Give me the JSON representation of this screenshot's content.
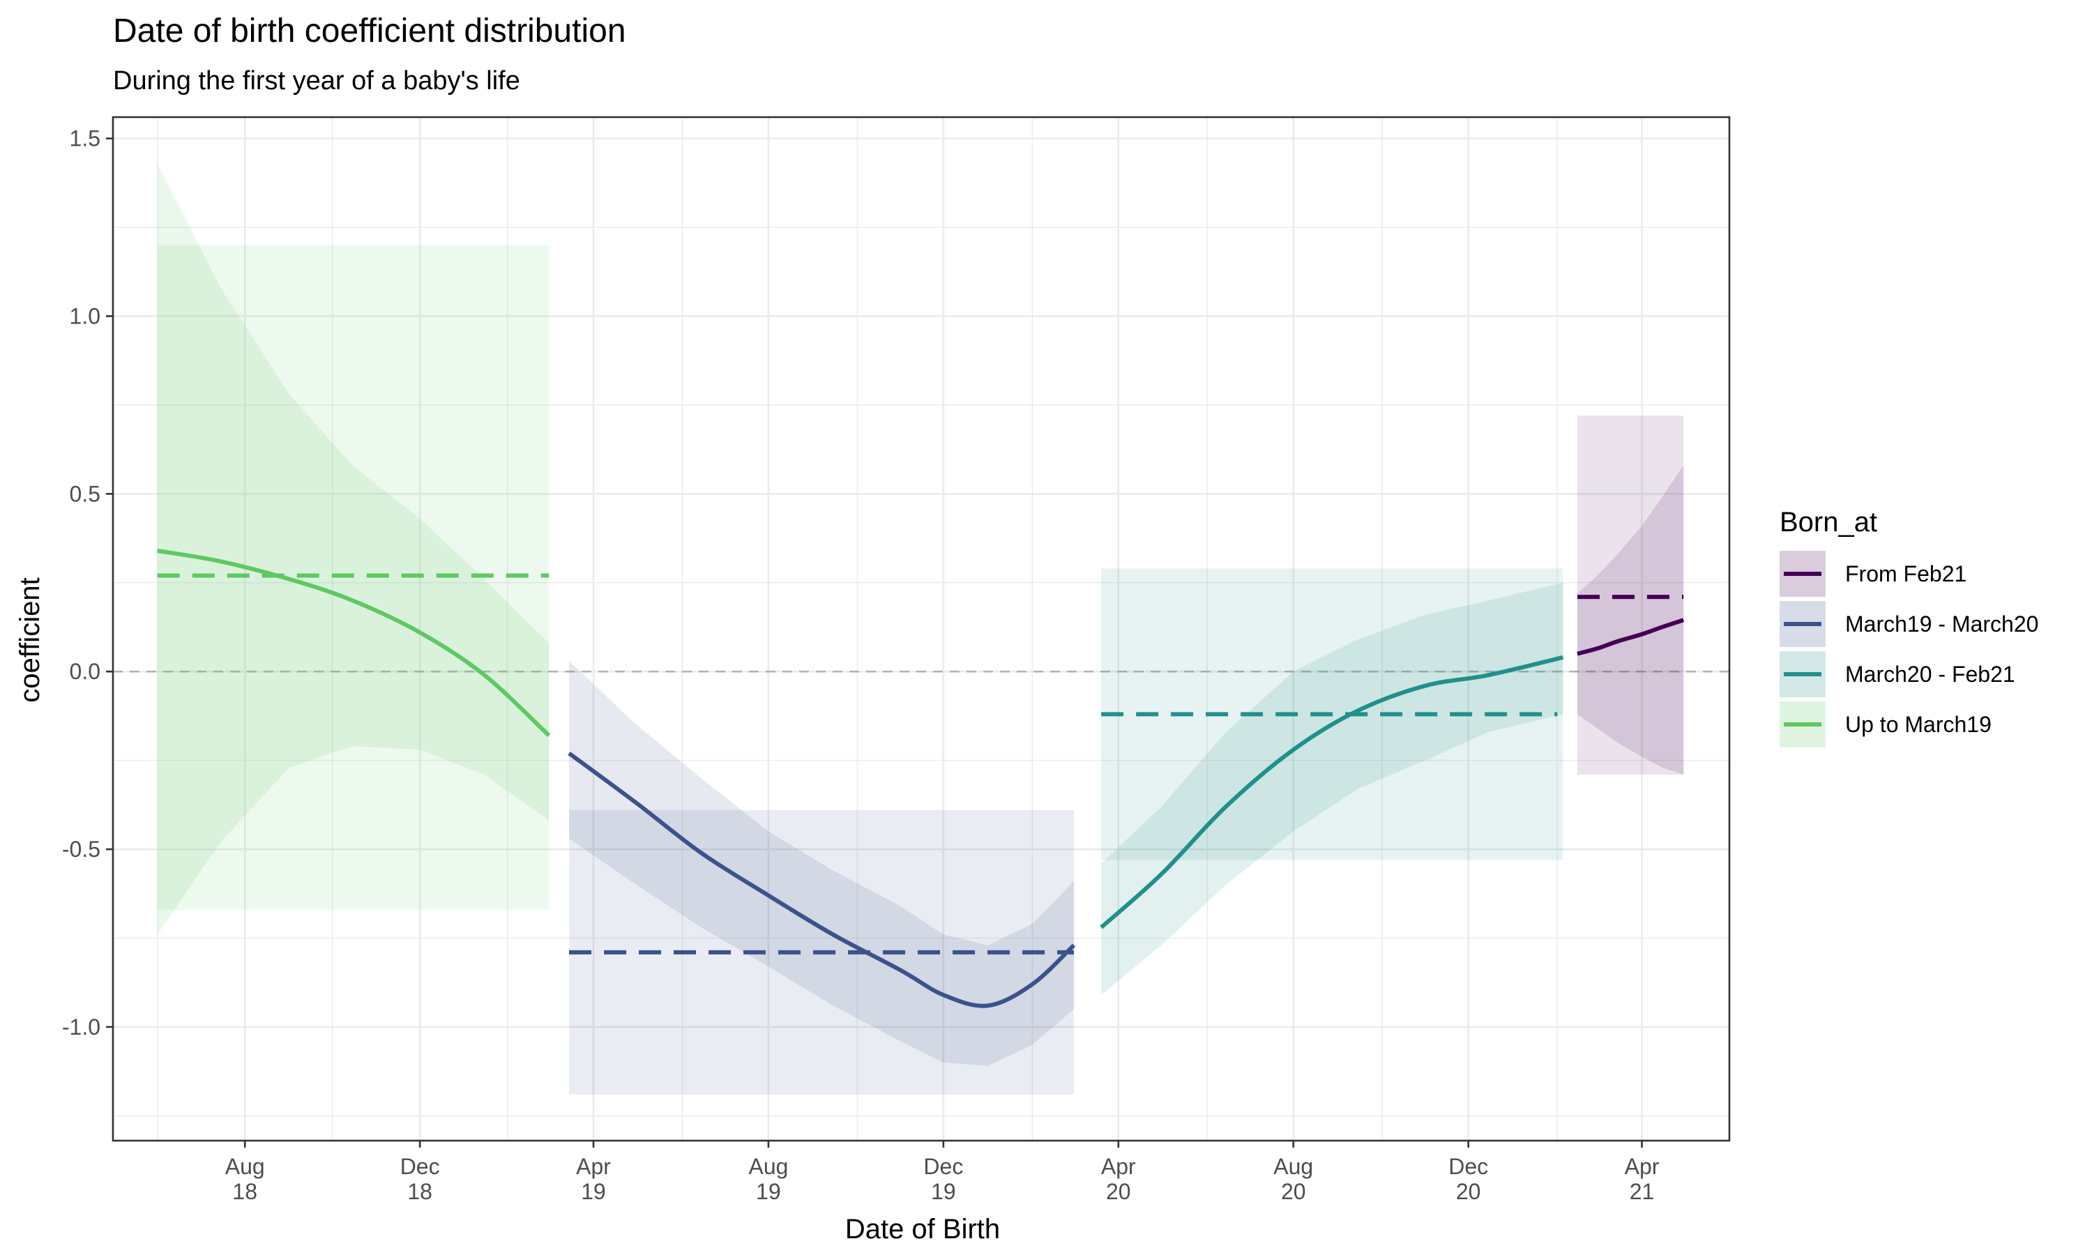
{
  "chart_data": {
    "type": "line",
    "title": "Date of birth coefficient distribution",
    "subtitle": "During the first year of a baby's life",
    "xlabel": "Date of Birth",
    "ylabel": "coefficient",
    "x_type": "date",
    "xlim": [
      "2018-05-01",
      "2021-06-01"
    ],
    "ylim": [
      -1.32,
      1.56
    ],
    "y_ticks": [
      -1.0,
      -0.5,
      0.0,
      0.5,
      1.0,
      1.5
    ],
    "y_tick_labels": [
      "-1.0",
      "-0.5",
      "0.0",
      "0.5",
      "1.0",
      "1.5"
    ],
    "x_ticks": [
      {
        "date": "2018-08-01",
        "label": [
          "Aug",
          "18"
        ]
      },
      {
        "date": "2018-12-01",
        "label": [
          "Dec",
          "18"
        ]
      },
      {
        "date": "2019-04-01",
        "label": [
          "Apr",
          "19"
        ]
      },
      {
        "date": "2019-08-01",
        "label": [
          "Aug",
          "19"
        ]
      },
      {
        "date": "2019-12-01",
        "label": [
          "Dec",
          "19"
        ]
      },
      {
        "date": "2020-04-01",
        "label": [
          "Apr",
          "20"
        ]
      },
      {
        "date": "2020-08-01",
        "label": [
          "Aug",
          "20"
        ]
      },
      {
        "date": "2020-12-01",
        "label": [
          "Dec",
          "20"
        ]
      },
      {
        "date": "2021-04-01",
        "label": [
          "Apr",
          "21"
        ]
      }
    ],
    "grid": true,
    "reference_line": {
      "y": 0.0,
      "style": "dashed"
    },
    "legend": {
      "title": "Born_at",
      "position": "right"
    },
    "series": [
      {
        "name": "From Feb21",
        "color": "#440154",
        "mean": 0.21,
        "mean_range": [
          "2021-02-15",
          "2021-04-30"
        ],
        "interval": {
          "from": "2021-02-15",
          "to": "2021-04-30",
          "low": -0.29,
          "high": 0.72
        },
        "trend": [
          {
            "x": "2021-02-15",
            "y": 0.05
          },
          {
            "x": "2021-03-01",
            "y": 0.065
          },
          {
            "x": "2021-03-15",
            "y": 0.085
          },
          {
            "x": "2021-04-01",
            "y": 0.105
          },
          {
            "x": "2021-04-15",
            "y": 0.125
          },
          {
            "x": "2021-04-30",
            "y": 0.145
          }
        ],
        "trend_band": [
          {
            "x": "2021-02-15",
            "low": -0.12,
            "high": 0.22
          },
          {
            "x": "2021-03-01",
            "low": -0.16,
            "high": 0.27
          },
          {
            "x": "2021-03-15",
            "low": -0.2,
            "high": 0.33
          },
          {
            "x": "2021-04-01",
            "low": -0.24,
            "high": 0.41
          },
          {
            "x": "2021-04-15",
            "low": -0.27,
            "high": 0.49
          },
          {
            "x": "2021-04-30",
            "low": -0.29,
            "high": 0.58
          }
        ]
      },
      {
        "name": "March19 - March20",
        "color": "#3b528b",
        "mean": -0.79,
        "mean_range": [
          "2019-03-15",
          "2020-03-01"
        ],
        "interval": {
          "from": "2019-03-15",
          "to": "2020-03-01",
          "low": -1.19,
          "high": -0.39
        },
        "trend": [
          {
            "x": "2019-03-15",
            "y": -0.23
          },
          {
            "x": "2019-05-01",
            "y": -0.37
          },
          {
            "x": "2019-06-15",
            "y": -0.51
          },
          {
            "x": "2019-08-01",
            "y": -0.63
          },
          {
            "x": "2019-09-15",
            "y": -0.74
          },
          {
            "x": "2019-11-01",
            "y": -0.84
          },
          {
            "x": "2019-12-01",
            "y": -0.91
          },
          {
            "x": "2020-01-01",
            "y": -0.94
          },
          {
            "x": "2020-02-01",
            "y": -0.88
          },
          {
            "x": "2020-03-01",
            "y": -0.77
          }
        ],
        "trend_band": [
          {
            "x": "2019-03-15",
            "low": -0.47,
            "high": 0.03
          },
          {
            "x": "2019-05-01",
            "low": -0.6,
            "high": -0.15
          },
          {
            "x": "2019-06-15",
            "low": -0.72,
            "high": -0.3
          },
          {
            "x": "2019-08-01",
            "low": -0.83,
            "high": -0.45
          },
          {
            "x": "2019-09-15",
            "low": -0.94,
            "high": -0.56
          },
          {
            "x": "2019-11-01",
            "low": -1.04,
            "high": -0.66
          },
          {
            "x": "2019-12-01",
            "low": -1.1,
            "high": -0.74
          },
          {
            "x": "2020-01-01",
            "low": -1.11,
            "high": -0.77
          },
          {
            "x": "2020-02-01",
            "low": -1.05,
            "high": -0.71
          },
          {
            "x": "2020-03-01",
            "low": -0.95,
            "high": -0.59
          }
        ]
      },
      {
        "name": "March20 - Feb21",
        "color": "#21908c",
        "mean": -0.12,
        "mean_range": [
          "2020-03-20",
          "2021-02-01"
        ],
        "interval": {
          "from": "2020-03-20",
          "to": "2021-02-05",
          "low": -0.53,
          "high": 0.29
        },
        "trend": [
          {
            "x": "2020-03-20",
            "y": -0.72
          },
          {
            "x": "2020-05-01",
            "y": -0.57
          },
          {
            "x": "2020-06-15",
            "y": -0.38
          },
          {
            "x": "2020-08-01",
            "y": -0.22
          },
          {
            "x": "2020-09-15",
            "y": -0.11
          },
          {
            "x": "2020-11-01",
            "y": -0.04
          },
          {
            "x": "2020-12-15",
            "y": -0.01
          },
          {
            "x": "2021-02-05",
            "y": 0.04
          }
        ],
        "trend_band": [
          {
            "x": "2020-03-20",
            "low": -0.91,
            "high": -0.54
          },
          {
            "x": "2020-05-01",
            "low": -0.77,
            "high": -0.38
          },
          {
            "x": "2020-06-15",
            "low": -0.6,
            "high": -0.17
          },
          {
            "x": "2020-08-01",
            "low": -0.45,
            "high": 0.0
          },
          {
            "x": "2020-09-15",
            "low": -0.33,
            "high": 0.09
          },
          {
            "x": "2020-11-01",
            "low": -0.25,
            "high": 0.16
          },
          {
            "x": "2020-12-15",
            "low": -0.17,
            "high": 0.2
          },
          {
            "x": "2021-02-05",
            "low": -0.12,
            "high": 0.25
          }
        ]
      },
      {
        "name": "Up to March19",
        "color": "#5ec962",
        "mean": 0.27,
        "mean_range": [
          "2018-06-01",
          "2019-03-01"
        ],
        "interval": {
          "from": "2018-06-01",
          "to": "2019-03-01",
          "low": -0.67,
          "high": 1.2
        },
        "trend": [
          {
            "x": "2018-06-01",
            "y": 0.34
          },
          {
            "x": "2018-07-15",
            "y": 0.31
          },
          {
            "x": "2018-09-01",
            "y": 0.26
          },
          {
            "x": "2018-10-15",
            "y": 0.2
          },
          {
            "x": "2018-12-01",
            "y": 0.11
          },
          {
            "x": "2019-01-15",
            "y": -0.01
          },
          {
            "x": "2019-03-01",
            "y": -0.18
          }
        ],
        "trend_band": [
          {
            "x": "2018-06-01",
            "low": -0.74,
            "high": 1.43
          },
          {
            "x": "2018-07-15",
            "low": -0.48,
            "high": 1.08
          },
          {
            "x": "2018-09-01",
            "low": -0.27,
            "high": 0.78
          },
          {
            "x": "2018-10-15",
            "low": -0.21,
            "high": 0.58
          },
          {
            "x": "2018-12-01",
            "low": -0.22,
            "high": 0.43
          },
          {
            "x": "2019-01-15",
            "low": -0.29,
            "high": 0.26
          },
          {
            "x": "2019-03-01",
            "low": -0.42,
            "high": 0.08
          }
        ]
      }
    ]
  }
}
